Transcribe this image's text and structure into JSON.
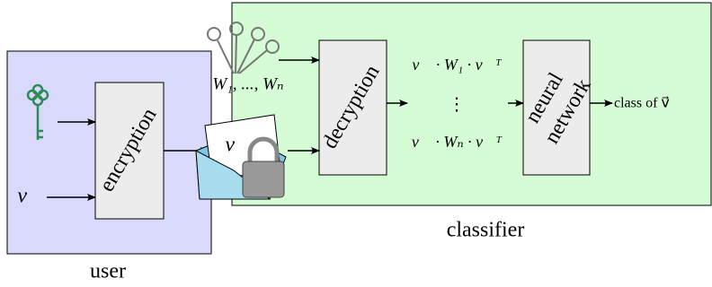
{
  "regions": [
    {
      "label": "user"
    },
    {
      "label": "classifier"
    }
  ],
  "input_vector": "v⃗",
  "nodes": [
    {
      "lines": [
        "encryption"
      ]
    },
    {
      "lines": [
        "decryption"
      ]
    },
    {
      "lines": [
        "neural",
        "network"
      ]
    }
  ],
  "envelope": {
    "label": "v⃗"
  },
  "keys": {
    "label": "W₁, ..., Wₙ"
  },
  "products": [
    "v⃗ · W₁ · v⃗ᵀ",
    "⋮",
    "v⃗ · Wₙ · v⃗ᵀ"
  ],
  "output": "class of v⃗"
}
